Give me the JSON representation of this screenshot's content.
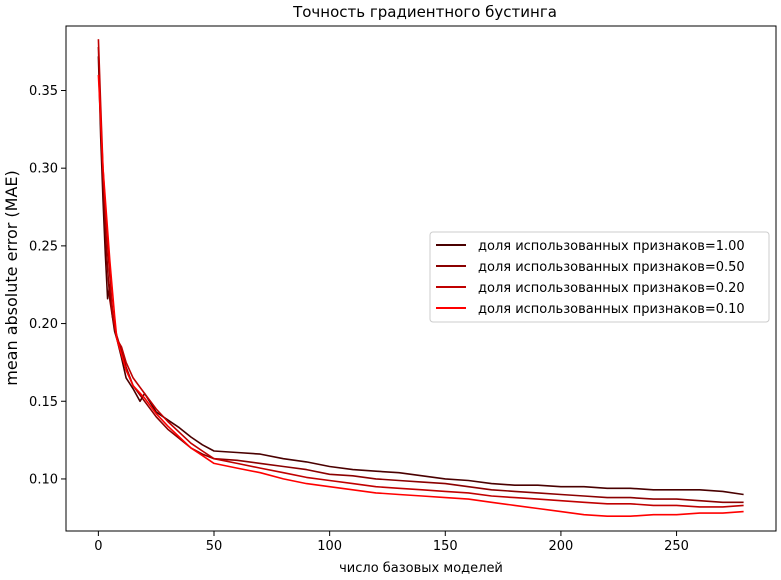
{
  "chart_data": {
    "type": "line",
    "title": "Точность градиентного бустинга",
    "xlabel": "число базовых моделей",
    "ylabel": "mean absolute error (MAE)",
    "xlim": [
      -14,
      293
    ],
    "ylim": [
      0.0665,
      0.3915
    ],
    "xticks": [
      0,
      50,
      100,
      150,
      200,
      250
    ],
    "xtick_labels": [
      "0",
      "50",
      "100",
      "150",
      "200",
      "250"
    ],
    "yticks": [
      0.1,
      0.15,
      0.2,
      0.25,
      0.3,
      0.35
    ],
    "ytick_labels": [
      "0.10",
      "0.15",
      "0.20",
      "0.25",
      "0.30",
      "0.35"
    ],
    "grid": false,
    "legend_position": "center-right",
    "series": [
      {
        "name": "доля использованных признаков=1.00",
        "color": "#4a0000",
        "points": [
          [
            0,
            0.372
          ],
          [
            1,
            0.32
          ],
          [
            2,
            0.28
          ],
          [
            3,
            0.245
          ],
          [
            4,
            0.216
          ],
          [
            5,
            0.225
          ],
          [
            6,
            0.205
          ],
          [
            7,
            0.195
          ],
          [
            8,
            0.19
          ],
          [
            10,
            0.178
          ],
          [
            12,
            0.165
          ],
          [
            15,
            0.158
          ],
          [
            18,
            0.15
          ],
          [
            20,
            0.155
          ],
          [
            25,
            0.143
          ],
          [
            30,
            0.138
          ],
          [
            35,
            0.133
          ],
          [
            40,
            0.127
          ],
          [
            45,
            0.122
          ],
          [
            50,
            0.118
          ],
          [
            60,
            0.117
          ],
          [
            70,
            0.116
          ],
          [
            80,
            0.113
          ],
          [
            90,
            0.111
          ],
          [
            100,
            0.108
          ],
          [
            110,
            0.106
          ],
          [
            120,
            0.105
          ],
          [
            130,
            0.104
          ],
          [
            140,
            0.102
          ],
          [
            150,
            0.1
          ],
          [
            160,
            0.099
          ],
          [
            170,
            0.097
          ],
          [
            180,
            0.096
          ],
          [
            190,
            0.096
          ],
          [
            200,
            0.095
          ],
          [
            210,
            0.095
          ],
          [
            220,
            0.094
          ],
          [
            230,
            0.094
          ],
          [
            240,
            0.093
          ],
          [
            250,
            0.093
          ],
          [
            260,
            0.093
          ],
          [
            270,
            0.092
          ],
          [
            279,
            0.09
          ]
        ]
      },
      {
        "name": "доля использованных признаков=0.50",
        "color": "#8b0000",
        "points": [
          [
            0,
            0.378
          ],
          [
            1,
            0.33
          ],
          [
            2,
            0.29
          ],
          [
            3,
            0.26
          ],
          [
            4,
            0.235
          ],
          [
            5,
            0.215
          ],
          [
            6,
            0.205
          ],
          [
            7,
            0.198
          ],
          [
            8,
            0.192
          ],
          [
            10,
            0.182
          ],
          [
            12,
            0.172
          ],
          [
            15,
            0.16
          ],
          [
            20,
            0.15
          ],
          [
            25,
            0.14
          ],
          [
            30,
            0.132
          ],
          [
            35,
            0.126
          ],
          [
            40,
            0.12
          ],
          [
            45,
            0.116
          ],
          [
            50,
            0.113
          ],
          [
            60,
            0.112
          ],
          [
            70,
            0.11
          ],
          [
            80,
            0.108
          ],
          [
            90,
            0.106
          ],
          [
            100,
            0.103
          ],
          [
            110,
            0.102
          ],
          [
            120,
            0.1
          ],
          [
            130,
            0.099
          ],
          [
            140,
            0.098
          ],
          [
            150,
            0.097
          ],
          [
            160,
            0.095
          ],
          [
            170,
            0.093
          ],
          [
            180,
            0.092
          ],
          [
            190,
            0.091
          ],
          [
            200,
            0.09
          ],
          [
            210,
            0.089
          ],
          [
            220,
            0.088
          ],
          [
            230,
            0.088
          ],
          [
            240,
            0.087
          ],
          [
            250,
            0.087
          ],
          [
            260,
            0.086
          ],
          [
            270,
            0.085
          ],
          [
            279,
            0.085
          ]
        ]
      },
      {
        "name": "доля использованных признаков=0.20",
        "color": "#c00000",
        "points": [
          [
            0,
            0.383
          ],
          [
            1,
            0.34
          ],
          [
            2,
            0.3
          ],
          [
            3,
            0.275
          ],
          [
            4,
            0.25
          ],
          [
            5,
            0.23
          ],
          [
            6,
            0.21
          ],
          [
            7,
            0.198
          ],
          [
            8,
            0.19
          ],
          [
            10,
            0.185
          ],
          [
            12,
            0.175
          ],
          [
            15,
            0.165
          ],
          [
            20,
            0.155
          ],
          [
            25,
            0.145
          ],
          [
            30,
            0.137
          ],
          [
            35,
            0.13
          ],
          [
            40,
            0.123
          ],
          [
            45,
            0.118
          ],
          [
            50,
            0.113
          ],
          [
            60,
            0.11
          ],
          [
            70,
            0.107
          ],
          [
            80,
            0.104
          ],
          [
            90,
            0.101
          ],
          [
            100,
            0.099
          ],
          [
            110,
            0.097
          ],
          [
            120,
            0.095
          ],
          [
            130,
            0.094
          ],
          [
            140,
            0.093
          ],
          [
            150,
            0.092
          ],
          [
            160,
            0.091
          ],
          [
            170,
            0.089
          ],
          [
            180,
            0.088
          ],
          [
            190,
            0.087
          ],
          [
            200,
            0.086
          ],
          [
            210,
            0.085
          ],
          [
            220,
            0.084
          ],
          [
            230,
            0.084
          ],
          [
            240,
            0.083
          ],
          [
            250,
            0.083
          ],
          [
            260,
            0.082
          ],
          [
            270,
            0.082
          ],
          [
            279,
            0.083
          ]
        ]
      },
      {
        "name": "доля использованных признаков=0.10",
        "color": "#ff0000",
        "points": [
          [
            0,
            0.36
          ],
          [
            1,
            0.33
          ],
          [
            2,
            0.3
          ],
          [
            3,
            0.28
          ],
          [
            4,
            0.26
          ],
          [
            5,
            0.24
          ],
          [
            6,
            0.222
          ],
          [
            7,
            0.205
          ],
          [
            8,
            0.19
          ],
          [
            10,
            0.18
          ],
          [
            12,
            0.17
          ],
          [
            15,
            0.16
          ],
          [
            20,
            0.152
          ],
          [
            25,
            0.142
          ],
          [
            30,
            0.134
          ],
          [
            35,
            0.127
          ],
          [
            40,
            0.12
          ],
          [
            45,
            0.115
          ],
          [
            50,
            0.11
          ],
          [
            60,
            0.107
          ],
          [
            70,
            0.104
          ],
          [
            80,
            0.1
          ],
          [
            90,
            0.097
          ],
          [
            100,
            0.095
          ],
          [
            110,
            0.093
          ],
          [
            120,
            0.091
          ],
          [
            130,
            0.09
          ],
          [
            140,
            0.089
          ],
          [
            150,
            0.088
          ],
          [
            160,
            0.087
          ],
          [
            170,
            0.085
          ],
          [
            180,
            0.083
          ],
          [
            190,
            0.081
          ],
          [
            200,
            0.079
          ],
          [
            210,
            0.077
          ],
          [
            220,
            0.076
          ],
          [
            230,
            0.076
          ],
          [
            240,
            0.077
          ],
          [
            250,
            0.077
          ],
          [
            260,
            0.078
          ],
          [
            270,
            0.078
          ],
          [
            279,
            0.079
          ]
        ]
      }
    ]
  }
}
